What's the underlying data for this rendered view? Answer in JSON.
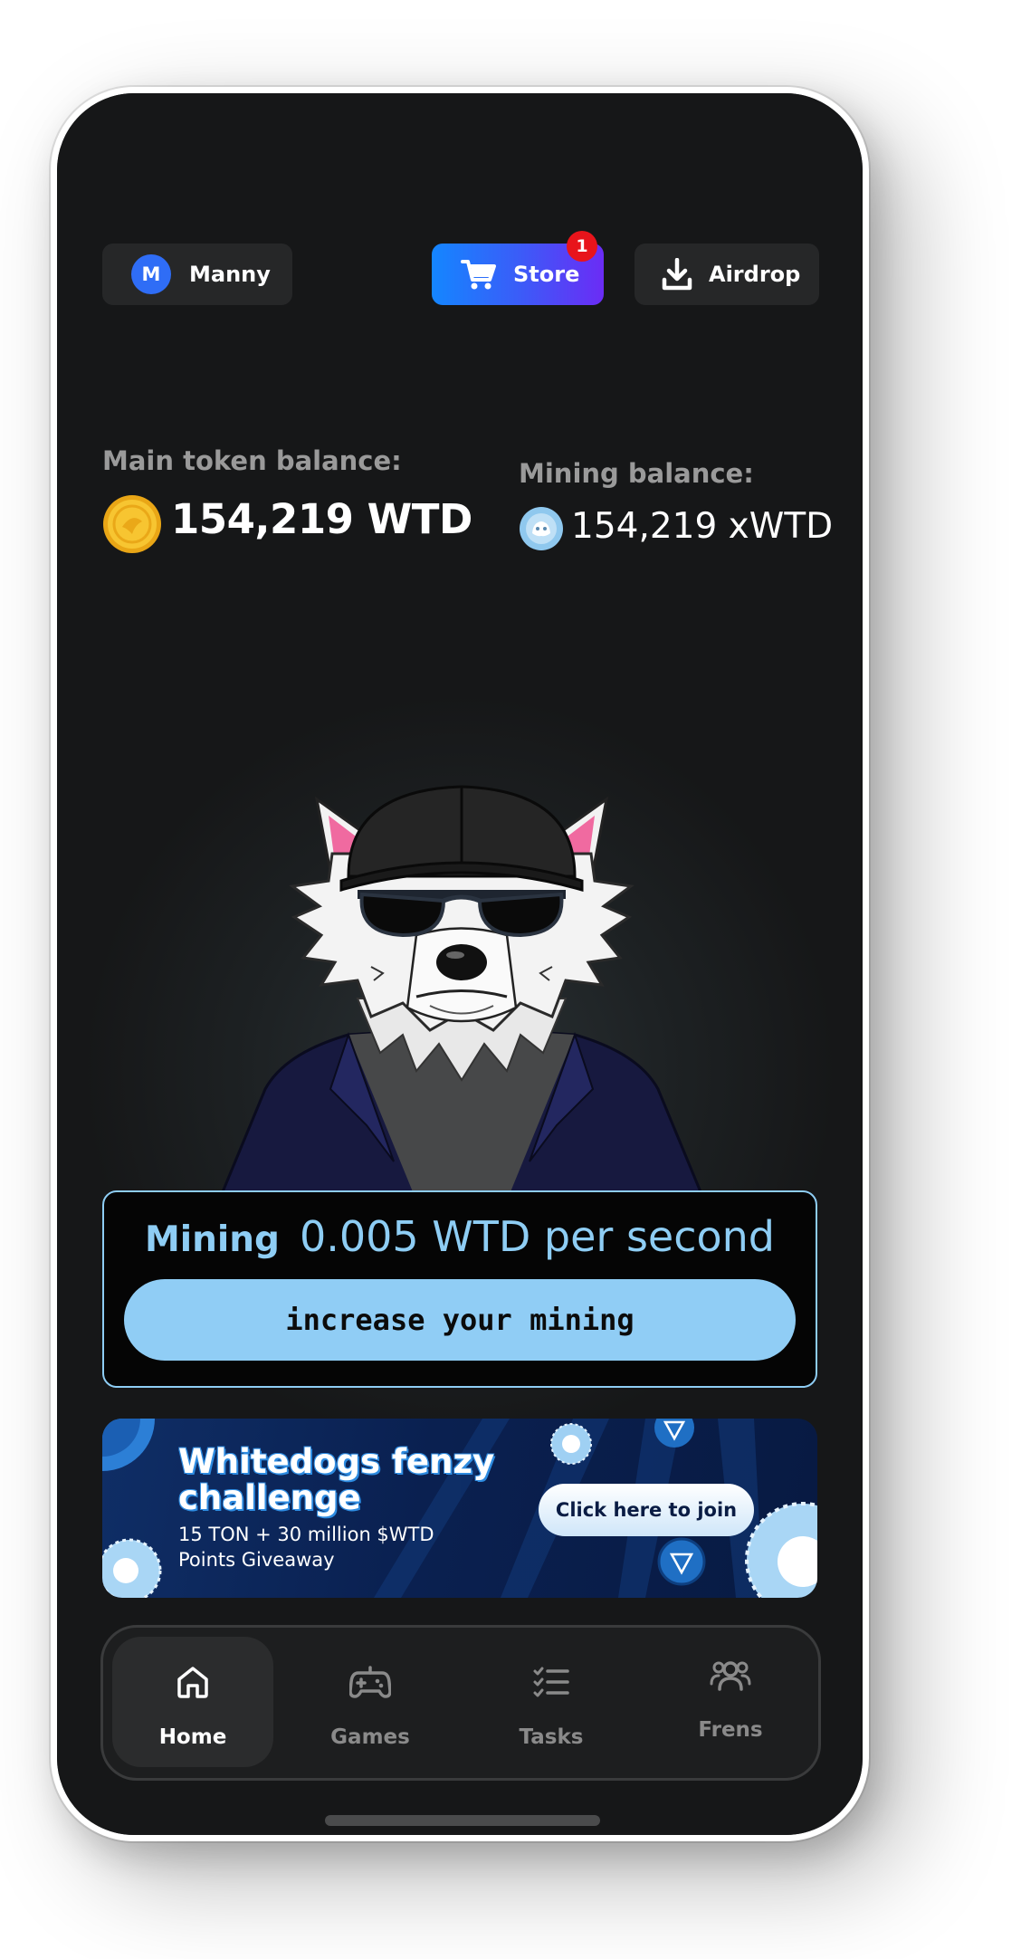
{
  "header": {
    "user": {
      "initial": "M",
      "name": "Manny"
    },
    "store": {
      "label": "Store",
      "badge_count": "1"
    },
    "airdrop": {
      "label": "Airdrop"
    }
  },
  "balances": {
    "main_label": "Main token balance:",
    "main_value": "154,219 WTD",
    "mining_label": "Mining balance:",
    "mining_value": "154,219 xWTD"
  },
  "mining": {
    "label": "Mining",
    "rate": "0.005 WTD per second",
    "button_label": "increase your mining"
  },
  "banner": {
    "title": "Whitedogs fenzy challenge",
    "subtitle": "15 TON + 30 million $WTD Points Giveaway",
    "cta_label": "Click here to join"
  },
  "nav": {
    "items": [
      {
        "label": "Home",
        "icon": "home-icon",
        "active": true
      },
      {
        "label": "Games",
        "icon": "gamepad-icon",
        "active": false
      },
      {
        "label": "Tasks",
        "icon": "tasks-icon",
        "active": false
      },
      {
        "label": "Frens",
        "icon": "friends-icon",
        "active": false
      }
    ]
  },
  "colors": {
    "accent": "#90cdf5",
    "store_gradient_start": "#1486ff",
    "store_gradient_end": "#6b2cf5",
    "badge": "#e8141b",
    "background": "#161718"
  }
}
